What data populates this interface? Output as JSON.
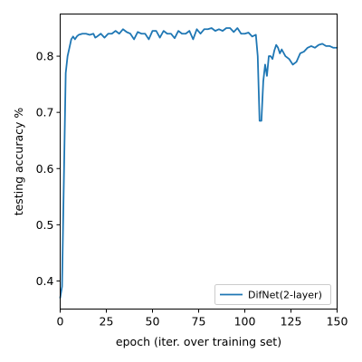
{
  "chart_data": {
    "type": "line",
    "xlabel": "epoch (iter. over training set)",
    "ylabel": "testing accuracy %",
    "xlim": [
      0,
      150
    ],
    "ylim": [
      0.35,
      0.875
    ],
    "xticks": [
      0,
      25,
      50,
      75,
      100,
      125,
      150
    ],
    "yticks": [
      0.4,
      0.5,
      0.6,
      0.7,
      0.8
    ],
    "xtick_labels": [
      "0",
      "25",
      "50",
      "75",
      "100",
      "125",
      "150"
    ],
    "ytick_labels": [
      "0.4",
      "0.5",
      "0.6",
      "0.7",
      "0.8"
    ],
    "grid": false,
    "legend_position": "lower-right",
    "series": [
      {
        "name": "DifNet(2-layer)",
        "color": "#1f77b4",
        "x": [
          0,
          1,
          2,
          3,
          4,
          5,
          6,
          7,
          8,
          9,
          10,
          12,
          14,
          16,
          18,
          19,
          20,
          22,
          24,
          26,
          28,
          30,
          32,
          34,
          36,
          38,
          40,
          42,
          44,
          46,
          48,
          50,
          52,
          54,
          56,
          58,
          60,
          62,
          64,
          66,
          68,
          70,
          72,
          74,
          76,
          78,
          80,
          82,
          84,
          86,
          88,
          90,
          92,
          94,
          96,
          98,
          100,
          102,
          104,
          106,
          107,
          108,
          109,
          110,
          111,
          112,
          113,
          114,
          115,
          116,
          117,
          118,
          119,
          120,
          122,
          124,
          126,
          128,
          130,
          132,
          134,
          136,
          138,
          140,
          142,
          144,
          146,
          148,
          150
        ],
        "y": [
          0.37,
          0.39,
          0.58,
          0.77,
          0.8,
          0.815,
          0.83,
          0.835,
          0.83,
          0.835,
          0.838,
          0.84,
          0.84,
          0.838,
          0.84,
          0.833,
          0.835,
          0.84,
          0.833,
          0.84,
          0.84,
          0.845,
          0.84,
          0.848,
          0.843,
          0.84,
          0.83,
          0.843,
          0.84,
          0.84,
          0.83,
          0.845,
          0.845,
          0.833,
          0.845,
          0.84,
          0.84,
          0.832,
          0.845,
          0.84,
          0.84,
          0.845,
          0.83,
          0.848,
          0.84,
          0.848,
          0.848,
          0.85,
          0.845,
          0.848,
          0.845,
          0.85,
          0.85,
          0.843,
          0.85,
          0.84,
          0.84,
          0.842,
          0.835,
          0.838,
          0.8,
          0.685,
          0.685,
          0.755,
          0.785,
          0.765,
          0.8,
          0.8,
          0.795,
          0.81,
          0.82,
          0.815,
          0.805,
          0.812,
          0.8,
          0.795,
          0.785,
          0.79,
          0.805,
          0.808,
          0.815,
          0.818,
          0.815,
          0.82,
          0.822,
          0.818,
          0.818,
          0.815,
          0.815
        ]
      }
    ]
  }
}
